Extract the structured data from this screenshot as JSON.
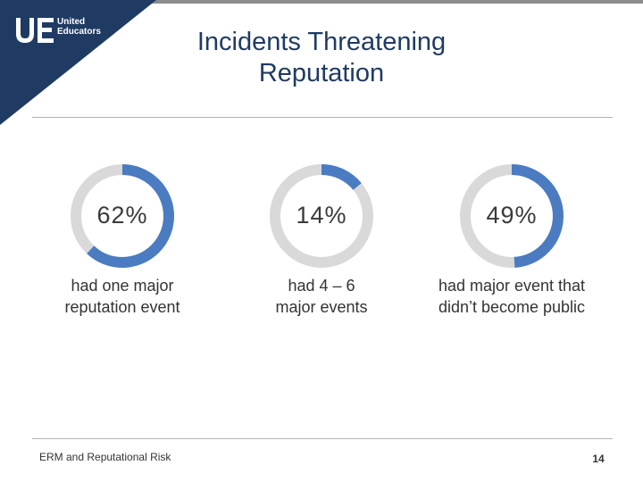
{
  "header": {
    "title_line1": "Incidents Threatening",
    "title_line2": "Reputation"
  },
  "logo": {
    "mark": "UE",
    "line1": "United",
    "line2": "Educators"
  },
  "colors": {
    "accent": "#4b7bc1",
    "track": "#d9d9d9",
    "brand_dark": "#1f3b63"
  },
  "chart_data": {
    "type": "pie",
    "items": [
      {
        "value": 62,
        "label": "62%",
        "caption_line1": "had one major",
        "caption_line2": "reputation event"
      },
      {
        "value": 14,
        "label": "14%",
        "caption_line1": "had 4 – 6",
        "caption_line2": "major events"
      },
      {
        "value": 49,
        "label": "49%",
        "caption_line1": "had major event that",
        "caption_line2": "didn’t become public"
      }
    ]
  },
  "footer": {
    "left_text": "ERM and Reputational Risk",
    "page_number": "14"
  }
}
